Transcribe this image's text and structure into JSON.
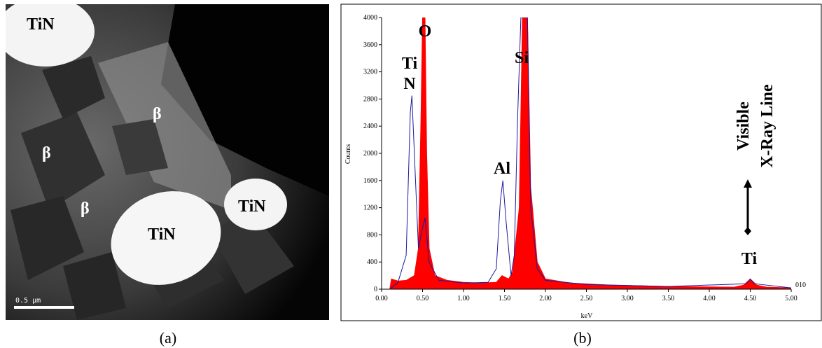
{
  "micrograph": {
    "labels": [
      "TiN",
      "β",
      "β",
      "β",
      "TiN",
      "TiN"
    ],
    "scale_bar": "0.5 µm",
    "caption": "(a)"
  },
  "chart_data": {
    "type": "area",
    "caption": "(b)",
    "x_label": "keV",
    "y_label": "Counts",
    "xlim": [
      0,
      5
    ],
    "ylim": [
      0,
      4000
    ],
    "xticks": [
      {
        "value": 0,
        "label": "0.00"
      },
      {
        "value": 0.5,
        "label": "0.50"
      },
      {
        "value": 1,
        "label": "1.00"
      },
      {
        "value": 1.5,
        "label": "1.50"
      },
      {
        "value": 2,
        "label": "2.00"
      },
      {
        "value": 2.5,
        "label": "2.50"
      },
      {
        "value": 3,
        "label": "3.00"
      },
      {
        "value": 3.5,
        "label": "3.50"
      },
      {
        "value": 4,
        "label": "4.00"
      },
      {
        "value": 4.5,
        "label": "4.50"
      },
      {
        "value": 5,
        "label": "5.00"
      }
    ],
    "yticks": [
      0,
      400,
      800,
      1200,
      1600,
      2000,
      2400,
      2800,
      3200,
      3600,
      4000
    ],
    "annotations": [
      "O",
      "Ti",
      "N",
      "Si",
      "Al",
      "Ti",
      "Visible",
      "X-Ray Line",
      "010"
    ],
    "series": [
      {
        "style": "filled",
        "color": "#ff0000",
        "x": [
          0.1,
          0.12,
          0.2,
          0.3,
          0.4,
          0.45,
          0.48,
          0.5,
          0.53,
          0.55,
          0.58,
          0.65,
          0.8,
          1.0,
          1.2,
          1.4,
          1.47,
          1.5,
          1.55,
          1.6,
          1.68,
          1.72,
          1.78,
          1.82,
          1.9,
          2.0,
          2.3,
          2.8,
          3.5,
          4.3,
          4.42,
          4.5,
          4.58,
          4.7,
          5.0
        ],
        "values": [
          0,
          150,
          120,
          130,
          200,
          600,
          2500,
          4000,
          4000,
          2000,
          600,
          200,
          130,
          100,
          90,
          100,
          200,
          180,
          150,
          250,
          1200,
          4000,
          4000,
          1500,
          400,
          150,
          90,
          60,
          40,
          30,
          60,
          150,
          60,
          30,
          20
        ]
      },
      {
        "style": "line",
        "color": "#1a1aa0",
        "x": [
          0.1,
          0.2,
          0.3,
          0.35,
          0.37,
          0.4,
          0.45,
          0.5,
          0.53,
          0.58,
          0.7,
          1.0,
          1.3,
          1.4,
          1.45,
          1.48,
          1.52,
          1.58,
          1.62,
          1.66,
          1.7,
          1.78,
          1.82,
          1.9,
          2.0,
          2.5,
          3.5,
          4.45,
          4.5,
          4.55,
          5.0
        ],
        "values": [
          0,
          100,
          500,
          2600,
          2850,
          2000,
          600,
          900,
          1050,
          400,
          130,
          90,
          100,
          300,
          1300,
          1600,
          1000,
          200,
          500,
          2500,
          4000,
          4000,
          1200,
          300,
          130,
          70,
          40,
          80,
          150,
          80,
          20
        ]
      }
    ]
  }
}
